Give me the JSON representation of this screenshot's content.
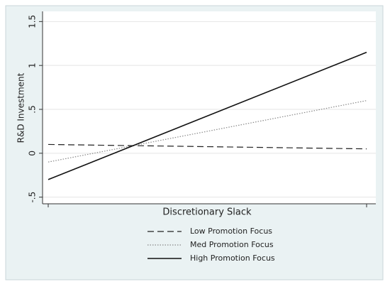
{
  "chart_data": {
    "type": "line",
    "y_label": "R&D Investment",
    "x_label": "Discretionary Slack",
    "categories": [
      null,
      null
    ],
    "series": [
      {
        "name": "Low Promotion Focus",
        "color": "#222222",
        "line_style": "dashed",
        "values": [
          0.1,
          0.05
        ]
      },
      {
        "name": "Med Promotion Focus",
        "color": "#888888",
        "line_style": "dotted",
        "values": [
          -0.1,
          0.6
        ]
      },
      {
        "name": "High Promotion Focus",
        "color": "#111111",
        "line_style": "solid",
        "values": [
          -0.3,
          1.15
        ]
      }
    ],
    "ylim": [
      -0.6,
      1.6
    ],
    "yticks": [
      {
        "value": -0.5,
        "label": "-.5"
      },
      0,
      {
        "value": 0.5,
        "label": ".5"
      },
      1,
      {
        "value": 1.5,
        "label": "1.5"
      }
    ],
    "grid": true
  }
}
